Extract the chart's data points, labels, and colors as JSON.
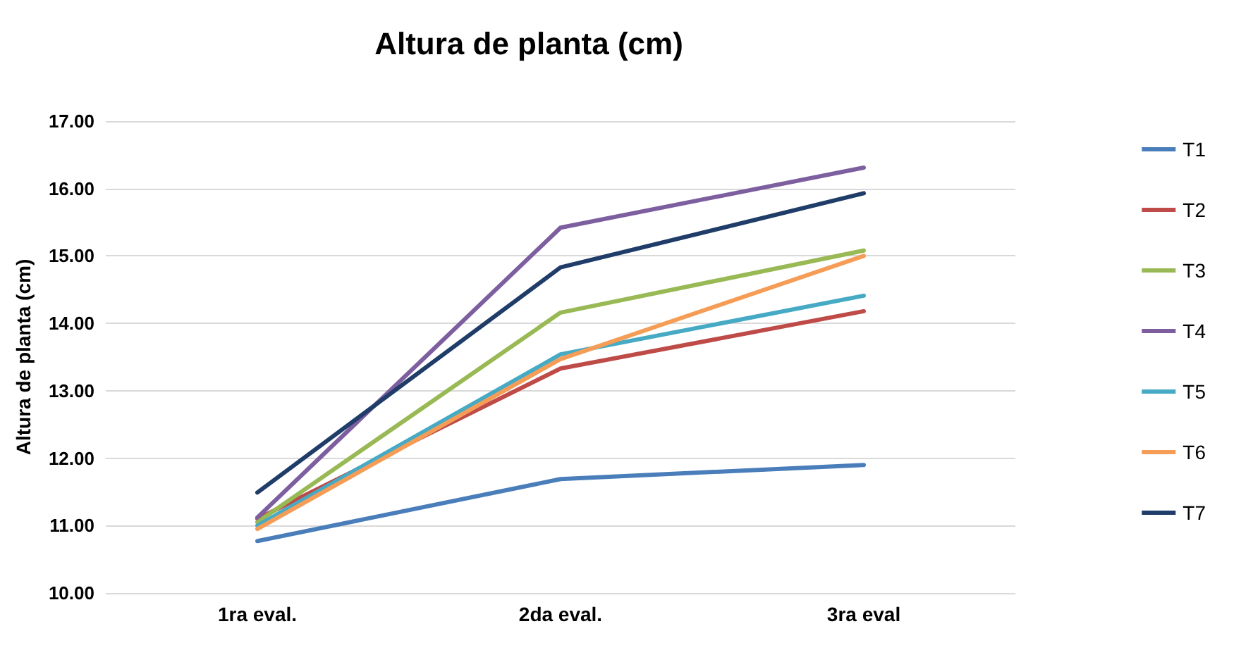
{
  "chart_data": {
    "type": "line",
    "title": "Altura de planta (cm)",
    "ylabel": "Altura de planta (cm)",
    "categories": [
      "1ra eval.",
      "2da eval.",
      "3ra eval"
    ],
    "series": [
      {
        "name": "T1",
        "color": "#4a7ebb",
        "values": [
          10.77,
          11.69,
          11.9
        ]
      },
      {
        "name": "T2",
        "color": "#be4b48",
        "values": [
          11.1,
          13.33,
          14.18
        ]
      },
      {
        "name": "T3",
        "color": "#98b954",
        "values": [
          11.05,
          14.16,
          15.08
        ]
      },
      {
        "name": "T4",
        "color": "#7d5fa0",
        "values": [
          11.12,
          15.42,
          16.31
        ]
      },
      {
        "name": "T5",
        "color": "#46aac5",
        "values": [
          11.0,
          13.54,
          14.41
        ]
      },
      {
        "name": "T6",
        "color": "#f59d56",
        "values": [
          10.95,
          13.47,
          15.0
        ]
      },
      {
        "name": "T7",
        "color": "#1f3d68",
        "values": [
          11.49,
          14.83,
          15.93
        ]
      }
    ],
    "ylim": [
      10,
      17
    ],
    "yticks": [
      {
        "value": 10,
        "label": "10.00"
      },
      {
        "value": 11,
        "label": "11.00"
      },
      {
        "value": 12,
        "label": "12.00"
      },
      {
        "value": 13,
        "label": "13.00"
      },
      {
        "value": 14,
        "label": "14.00"
      },
      {
        "value": 15,
        "label": "15.00"
      },
      {
        "value": 16,
        "label": "16.00"
      },
      {
        "value": 17,
        "label": "17.00"
      }
    ],
    "grid": "y",
    "legend": "right",
    "marker": "none",
    "line_style": "solid"
  }
}
